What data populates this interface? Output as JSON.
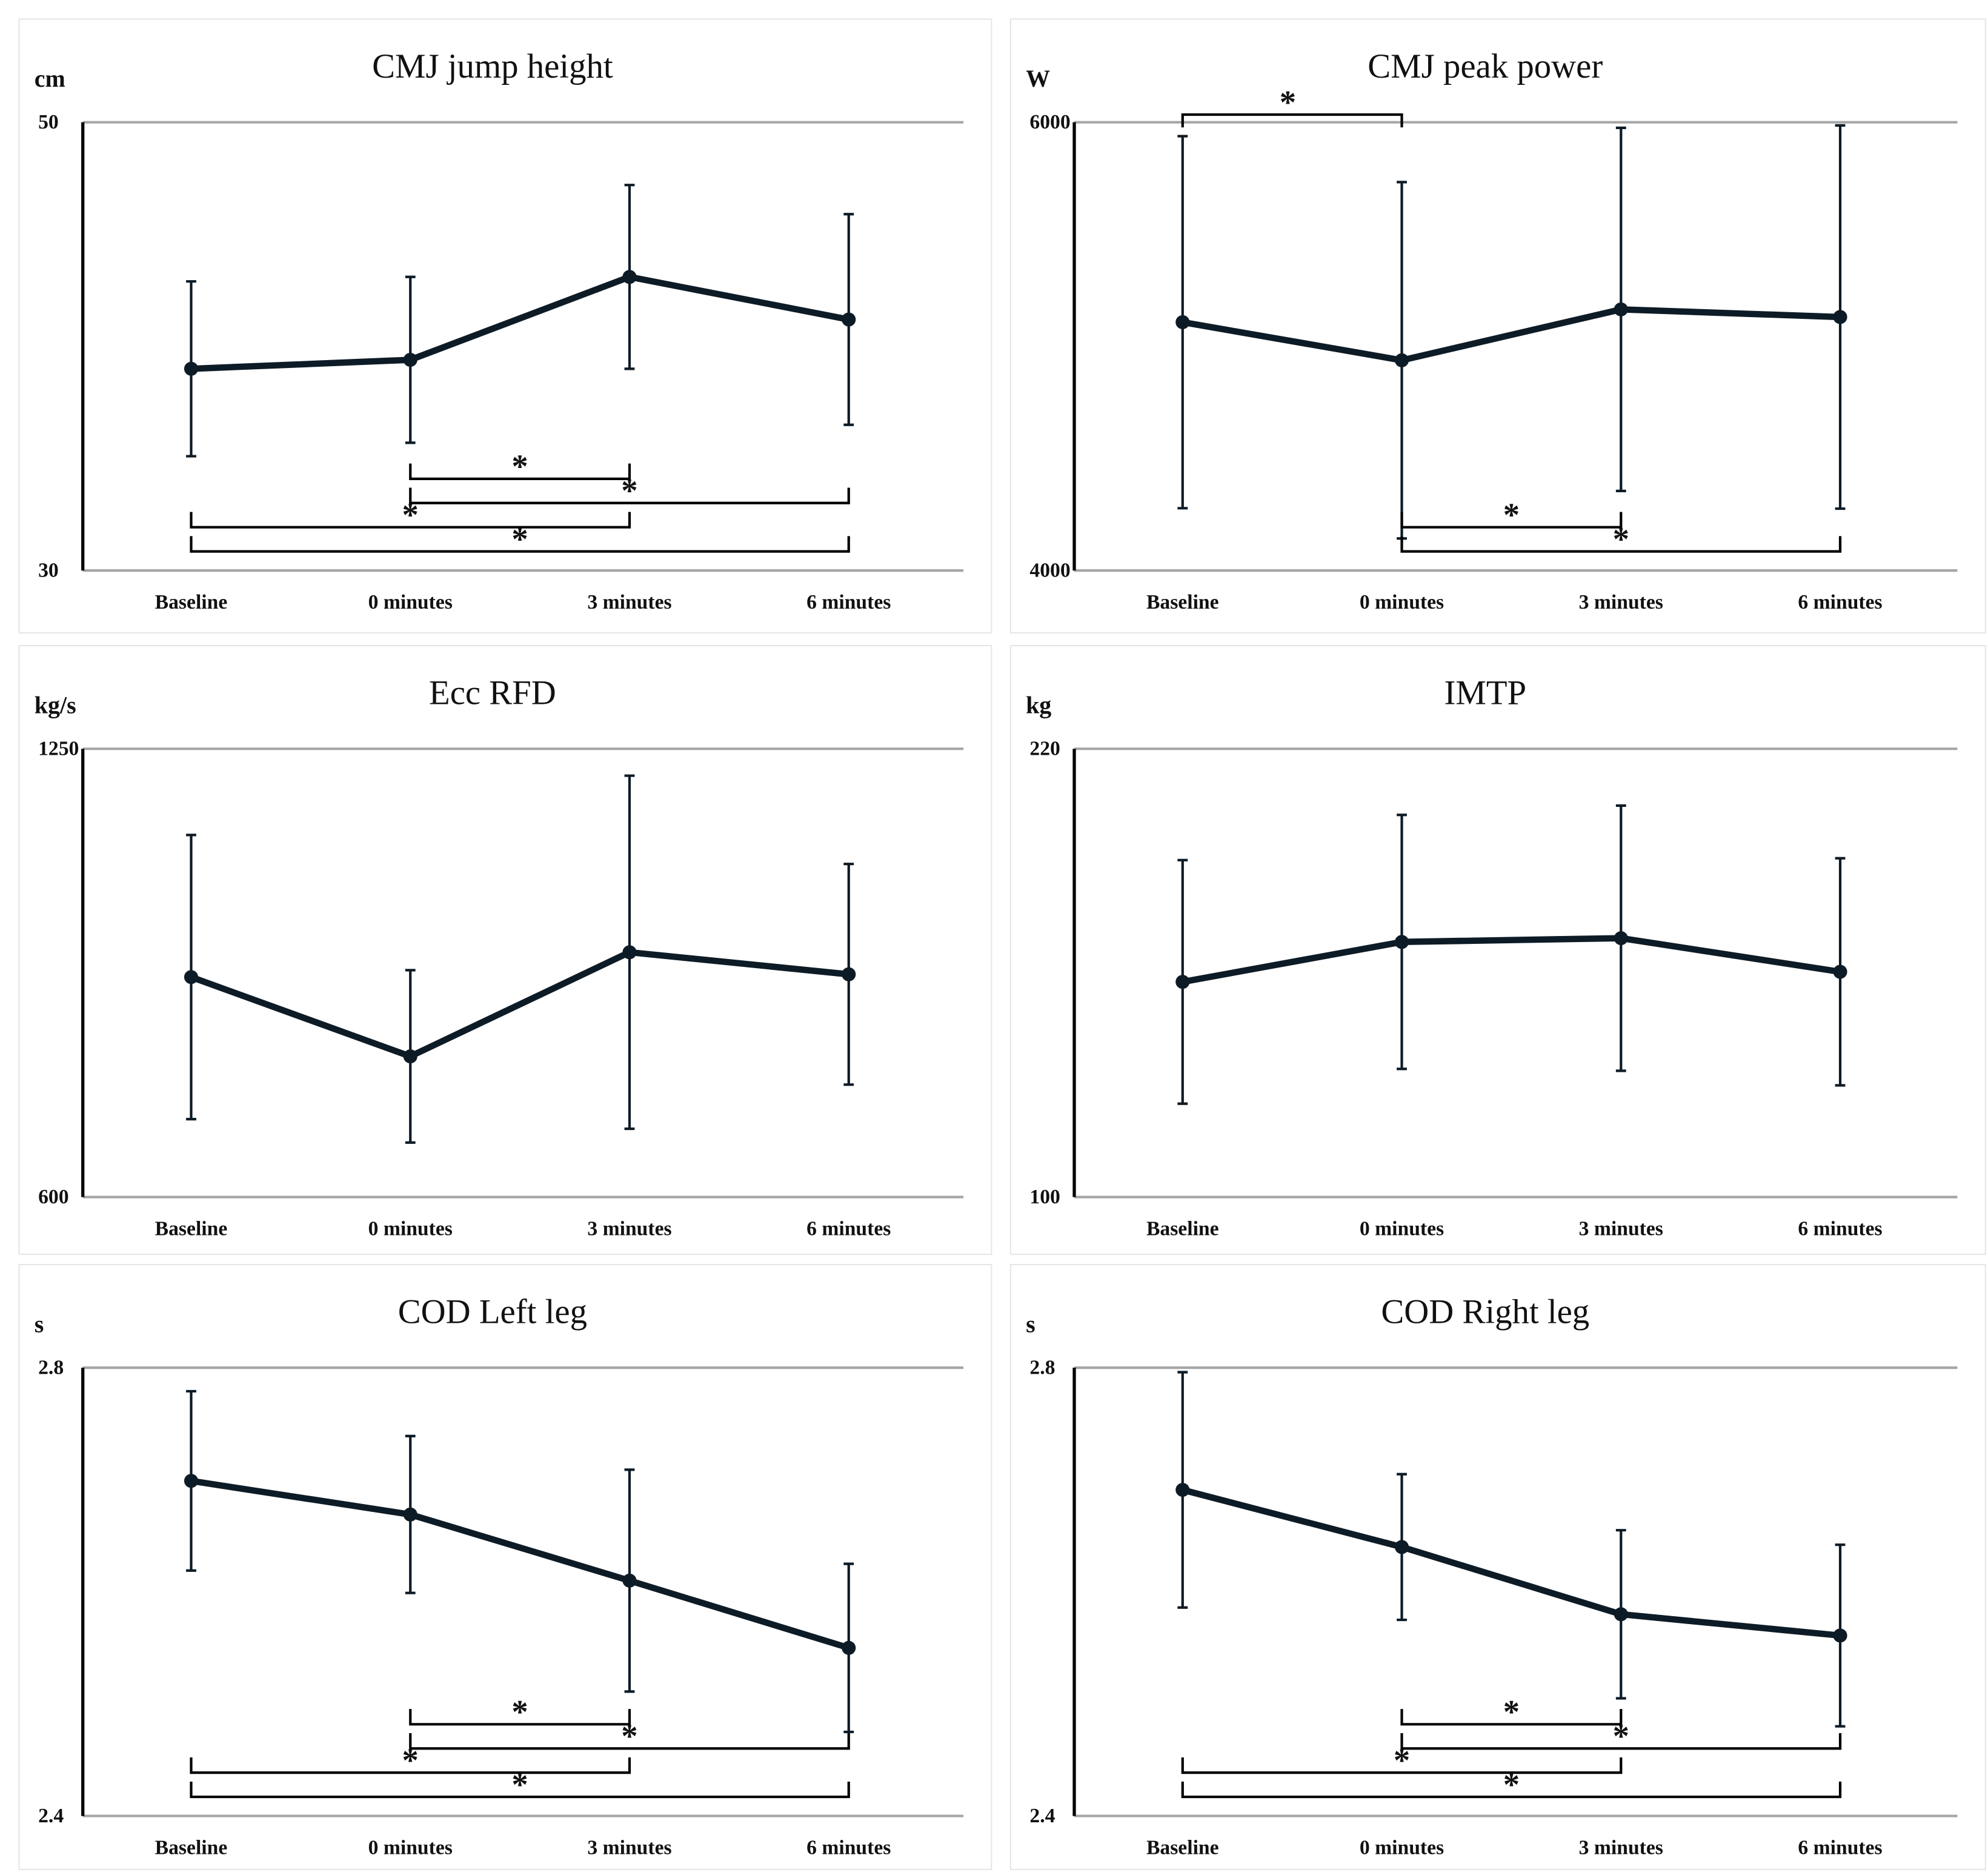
{
  "chart_data": [
    {
      "type": "line",
      "title": "CMJ jump height",
      "ylabel": "cm",
      "ylim": [
        30,
        50
      ],
      "categories": [
        "Baseline",
        "0 minutes",
        "3 minutes",
        "6 minutes"
      ],
      "values": [
        39.0,
        39.4,
        43.1,
        41.2
      ],
      "error": [
        3.9,
        3.7,
        4.1,
        4.7
      ],
      "significance": [
        {
          "pair": [
            1,
            2
          ],
          "label": "*"
        },
        {
          "pair": [
            1,
            3
          ],
          "label": "*"
        },
        {
          "pair": [
            0,
            2
          ],
          "label": "*"
        },
        {
          "pair": [
            0,
            3
          ],
          "label": "*"
        }
      ],
      "grid": true
    },
    {
      "type": "line",
      "title": "CMJ peak power",
      "ylabel": "W",
      "ylim": [
        4000,
        6000
      ],
      "categories": [
        "Baseline",
        "0 minutes",
        "3 minutes",
        "6 minutes"
      ],
      "values": [
        5108,
        4938,
        5165,
        5131
      ],
      "error": [
        830,
        795,
        810,
        855
      ],
      "significance": [
        {
          "pair": [
            0,
            1
          ],
          "label": "*",
          "placement": "top"
        },
        {
          "pair": [
            1,
            2
          ],
          "label": "*"
        },
        {
          "pair": [
            1,
            3
          ],
          "label": "*"
        }
      ],
      "grid": true
    },
    {
      "type": "line",
      "title": "Ecc RFD",
      "ylabel": "kg/s",
      "ylim": [
        600,
        1250
      ],
      "categories": [
        "Baseline",
        "0 minutes",
        "3 minutes",
        "6 minutes"
      ],
      "values": [
        919,
        804,
        955,
        923
      ],
      "error": [
        206,
        125,
        256,
        160
      ],
      "significance": [],
      "grid": true
    },
    {
      "type": "line",
      "title": "IMTP",
      "ylabel": "kg",
      "ylim": [
        100,
        220
      ],
      "categories": [
        "Baseline",
        "0 minutes",
        "3 minutes",
        "6 minutes"
      ],
      "values": [
        157.6,
        168.3,
        169.3,
        160.3
      ],
      "error": [
        32.6,
        34.0,
        35.5,
        30.4
      ],
      "significance": [],
      "grid": true
    },
    {
      "type": "line",
      "title": "COD Left leg",
      "ylabel": "s",
      "ylim": [
        2.4,
        2.8
      ],
      "categories": [
        "Baseline",
        "0 minutes",
        "3 minutes",
        "6 minutes"
      ],
      "values": [
        2.699,
        2.669,
        2.61,
        2.55
      ],
      "error": [
        0.08,
        0.07,
        0.099,
        0.075
      ],
      "significance": [
        {
          "pair": [
            1,
            2
          ],
          "label": "*"
        },
        {
          "pair": [
            1,
            3
          ],
          "label": "*"
        },
        {
          "pair": [
            0,
            2
          ],
          "label": "*"
        },
        {
          "pair": [
            0,
            3
          ],
          "label": "*"
        }
      ],
      "grid": true
    },
    {
      "type": "line",
      "title": "COD Right leg",
      "ylabel": "s",
      "ylim": [
        2.4,
        2.8
      ],
      "categories": [
        "Baseline",
        "0 minutes",
        "3 minutes",
        "6 minutes"
      ],
      "values": [
        2.691,
        2.64,
        2.58,
        2.561
      ],
      "error": [
        0.105,
        0.065,
        0.075,
        0.081
      ],
      "significance": [
        {
          "pair": [
            1,
            2
          ],
          "label": "*"
        },
        {
          "pair": [
            1,
            3
          ],
          "label": "*"
        },
        {
          "pair": [
            0,
            2
          ],
          "label": "*"
        },
        {
          "pair": [
            0,
            3
          ],
          "label": "*"
        }
      ],
      "grid": true
    }
  ],
  "colors": {
    "line": "#0d1b26",
    "grid": "#a6a6a6",
    "axis": "#000000",
    "panel_border": "#e6e6e6"
  }
}
